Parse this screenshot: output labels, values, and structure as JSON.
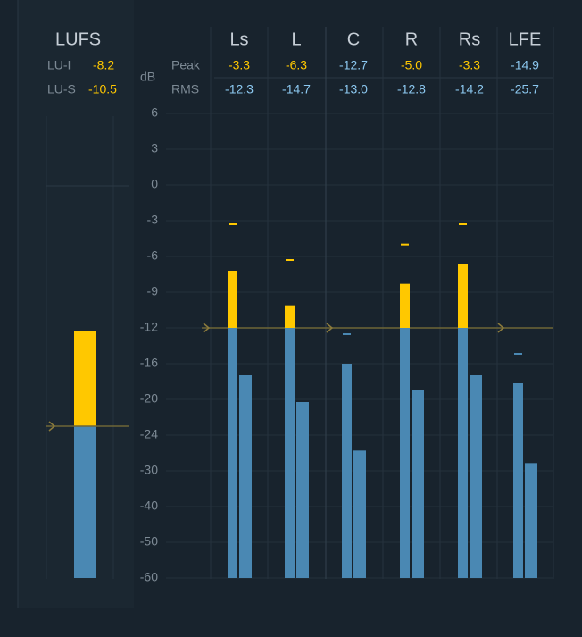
{
  "meter": {
    "lufs": {
      "title": "LUFS",
      "lu_i_label": "LU-I",
      "lu_i": -8.2,
      "lu_s_label": "LU-S",
      "lu_s": -10.5,
      "level": -12.4,
      "target": -23
    },
    "unit": "dB",
    "peak_label": "Peak",
    "rms_label": "RMS",
    "ticks": [
      6,
      3,
      0,
      -3,
      -6,
      -9,
      -12,
      -16,
      -20,
      -24,
      -30,
      -40,
      -50,
      -60
    ],
    "threshold": -12,
    "channels": [
      {
        "name": "Ls",
        "peak": -3.3,
        "rms": -12.3,
        "level": -7.2,
        "rms_level": -17.3
      },
      {
        "name": "L",
        "peak": -6.3,
        "rms": -14.7,
        "level": -10.1,
        "rms_level": -20.3
      },
      {
        "name": "C",
        "peak": -12.7,
        "rms": {
          "value": -13,
          "label": "-13.0"
        },
        "level": -16,
        "rms_level": -26.6
      },
      {
        "name": "R",
        "peak": {
          "value": -5,
          "label": "-5.0"
        },
        "rms": -12.8,
        "level": -8.3,
        "rms_level": -19
      },
      {
        "name": "Rs",
        "peak": -3.3,
        "rms": -14.2,
        "level": -6.6,
        "rms_level": -17.3
      },
      {
        "name": "LFE",
        "peak": -14.9,
        "rms": -25.7,
        "level": -18.2,
        "rms_level": -28.7
      }
    ]
  }
}
